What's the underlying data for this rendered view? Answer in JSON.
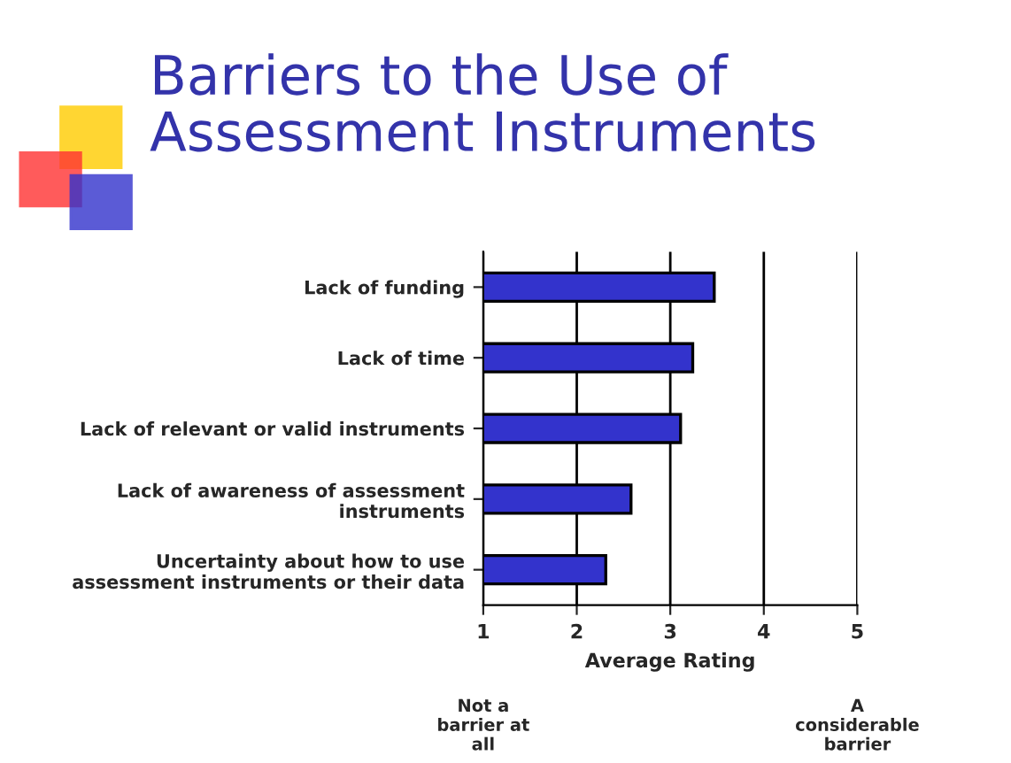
{
  "chart_data": {
    "type": "bar",
    "orientation": "horizontal",
    "title": "Barriers to the Use of\nAssessment Instruments",
    "categories": [
      "Lack of funding",
      "Lack of time",
      "Lack of relevant or valid instruments",
      "Lack of awareness of assessment\ninstruments",
      "Uncertainty about how to use\nassessment instruments or their data"
    ],
    "values": [
      3.47,
      3.24,
      3.11,
      2.58,
      2.31
    ],
    "color": "#3333cc",
    "xlabel": "Average Rating",
    "xlim": [
      1,
      5
    ],
    "xticks": [
      1,
      2,
      3,
      4,
      5
    ],
    "grid": "x",
    "annotations": [
      "Not a\nbarrier at\nall",
      "A\nconsiderable\nbarrier"
    ]
  }
}
